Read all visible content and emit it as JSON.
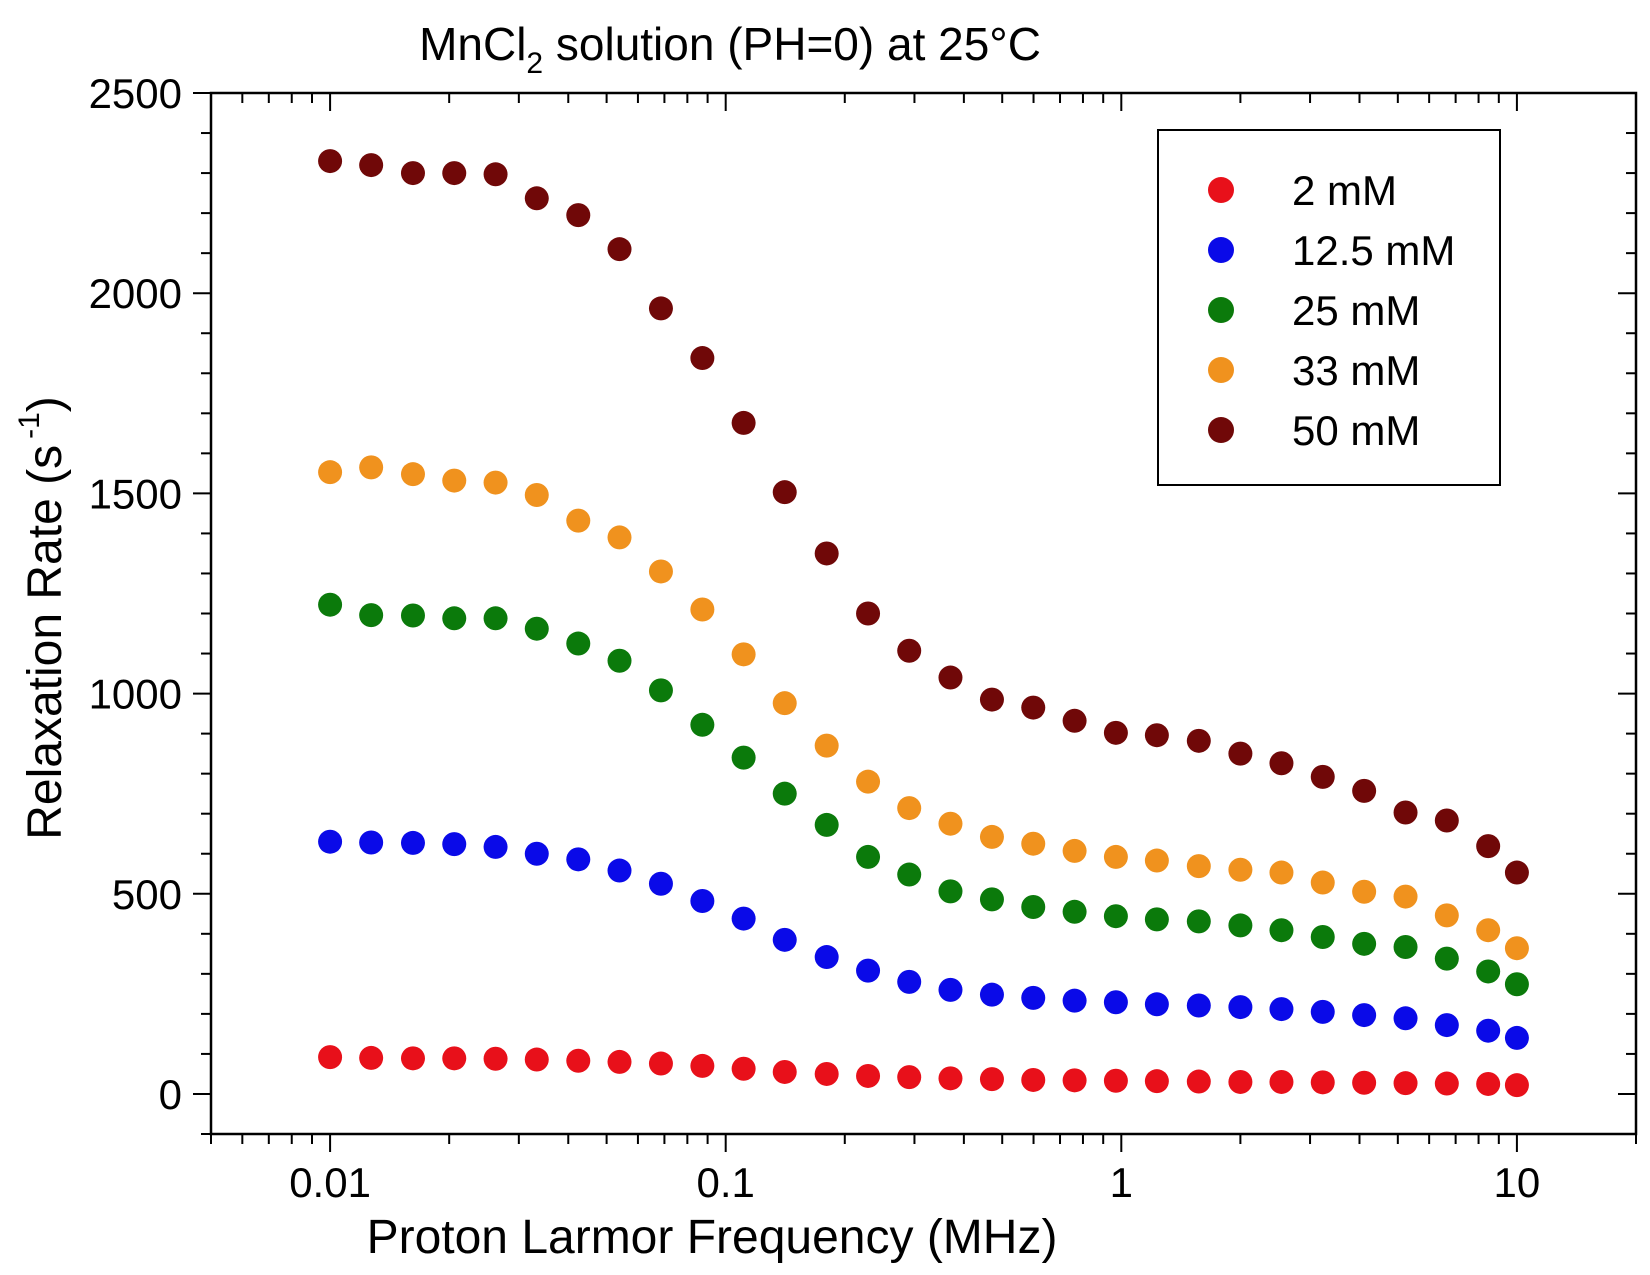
{
  "chart_data": {
    "type": "scatter",
    "title": {
      "main": "MnCl",
      "sub": "2",
      "rest": " solution (PH=0) at 25°C"
    },
    "xlabel": "Proton Larmor Frequency (MHz)",
    "ylabel": {
      "main": "Relaxation Rate (s",
      "sup": "-1",
      "close": ")"
    },
    "x_scale": "log",
    "xlim": [
      0.005,
      20
    ],
    "ylim": [
      -100,
      2500
    ],
    "x_ticks": [
      {
        "value": 0.01,
        "label": "0.01"
      },
      {
        "value": 0.1,
        "label": "0.1"
      },
      {
        "value": 1,
        "label": "1"
      },
      {
        "value": 10,
        "label": "10"
      }
    ],
    "y_ticks": [
      {
        "value": 0,
        "label": "0"
      },
      {
        "value": 500,
        "label": "500"
      },
      {
        "value": 1000,
        "label": "1000"
      },
      {
        "value": 1500,
        "label": "1500"
      },
      {
        "value": 2000,
        "label": "2000"
      },
      {
        "value": 2500,
        "label": "2500"
      }
    ],
    "grid": false,
    "legend_position": "top-right",
    "x": [
      0.01,
      0.0127,
      0.0162,
      0.0206,
      0.0262,
      0.0333,
      0.0424,
      0.0539,
      0.0686,
      0.0873,
      0.111,
      0.141,
      0.18,
      0.229,
      0.291,
      0.37,
      0.471,
      0.599,
      0.762,
      0.969,
      1.23,
      1.57,
      2.0,
      2.54,
      3.23,
      4.11,
      5.23,
      6.65,
      8.46,
      10.0
    ],
    "series": [
      {
        "name": "2 mM",
        "color": "#e8101a",
        "values": [
          92,
          90,
          89,
          89,
          88,
          86,
          83,
          80,
          76,
          70,
          63,
          55,
          50,
          45,
          42,
          39,
          37,
          35,
          34,
          33,
          32,
          31,
          30,
          30,
          29,
          28,
          27,
          26,
          25,
          22
        ]
      },
      {
        "name": "12.5 mM",
        "color": "#0a0ae8",
        "values": [
          630,
          628,
          627,
          624,
          617,
          600,
          586,
          558,
          525,
          482,
          438,
          385,
          342,
          308,
          280,
          260,
          248,
          240,
          233,
          229,
          224,
          221,
          217,
          212,
          205,
          197,
          189,
          172,
          158,
          140
        ]
      },
      {
        "name": "25 mM",
        "color": "#0b7a0b",
        "values": [
          1222,
          1196,
          1195,
          1188,
          1188,
          1162,
          1125,
          1082,
          1008,
          922,
          840,
          750,
          672,
          592,
          548,
          506,
          486,
          467,
          455,
          444,
          436,
          431,
          421,
          409,
          392,
          375,
          367,
          338,
          306,
          274
        ]
      },
      {
        "name": "33 mM",
        "color": "#f0921e",
        "values": [
          1553,
          1565,
          1548,
          1532,
          1527,
          1496,
          1432,
          1390,
          1305,
          1210,
          1098,
          976,
          870,
          780,
          714,
          675,
          642,
          625,
          607,
          592,
          583,
          569,
          560,
          553,
          528,
          505,
          493,
          446,
          409,
          364
        ]
      },
      {
        "name": "50 mM",
        "color": "#700808",
        "values": [
          2330,
          2320,
          2300,
          2300,
          2297,
          2237,
          2195,
          2110,
          1962,
          1838,
          1676,
          1503,
          1350,
          1200,
          1107,
          1040,
          985,
          965,
          932,
          902,
          896,
          882,
          850,
          826,
          792,
          757,
          703,
          683,
          619,
          553
        ]
      }
    ]
  }
}
